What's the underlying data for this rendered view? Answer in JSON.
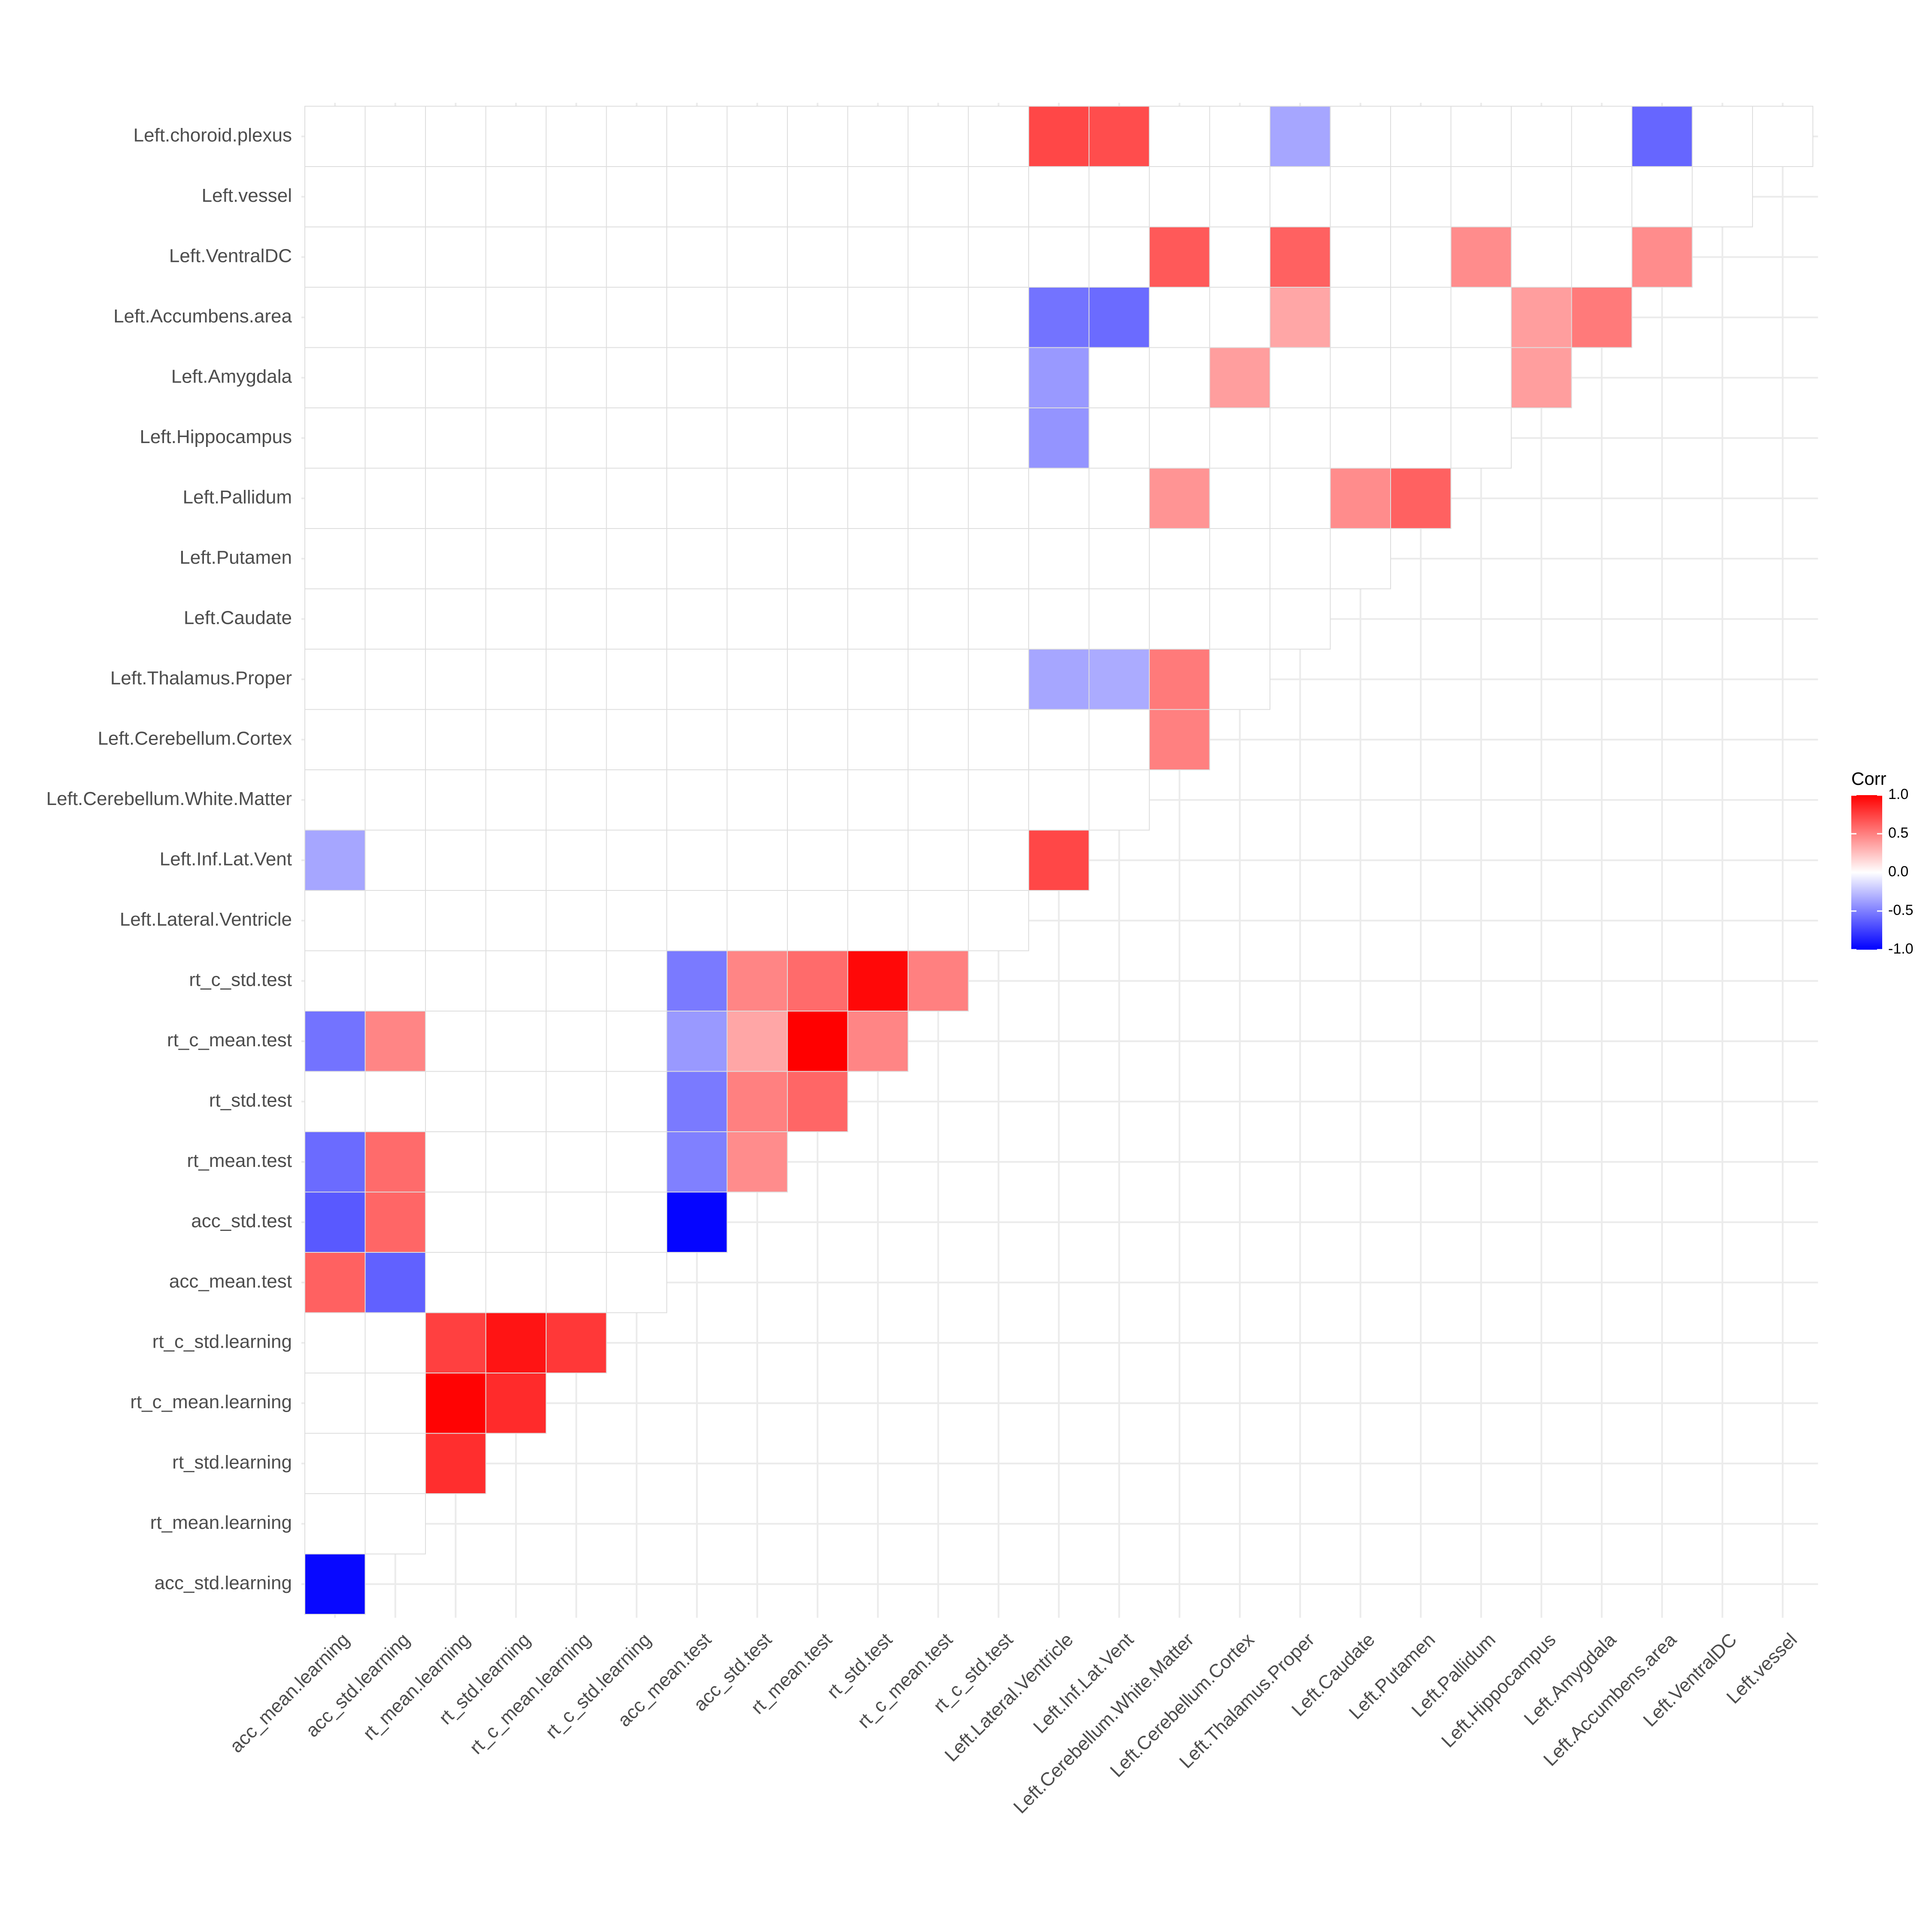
{
  "chart_data": {
    "type": "heatmap",
    "title": "",
    "xlabel": "",
    "ylabel": "",
    "variables": [
      "acc_mean.learning",
      "acc_std.learning",
      "rt_mean.learning",
      "rt_std.learning",
      "rt_c_mean.learning",
      "rt_c_std.learning",
      "acc_mean.test",
      "acc_std.test",
      "rt_mean.test",
      "rt_std.test",
      "rt_c_mean.test",
      "rt_c_std.test",
      "Left.Lateral.Ventricle",
      "Left.Inf.Lat.Vent",
      "Left.Cerebellum.White.Matter",
      "Left.Cerebellum.Cortex",
      "Left.Thalamus.Proper",
      "Left.Caudate",
      "Left.Putamen",
      "Left.Pallidum",
      "Left.Hippocampus",
      "Left.Amygdala",
      "Left.Accumbens.area",
      "Left.VentralDC",
      "Left.vessel",
      "Left.choroid.plexus"
    ],
    "x_labels": [
      "acc_mean.learning",
      "acc_std.learning",
      "rt_mean.learning",
      "rt_std.learning",
      "rt_c_mean.learning",
      "rt_c_std.learning",
      "acc_mean.test",
      "acc_std.test",
      "rt_mean.test",
      "rt_std.test",
      "rt_c_mean.test",
      "rt_c_std.test",
      "Left.Lateral.Ventricle",
      "Left.Inf.Lat.Vent",
      "Left.Cerebellum.White.Matter",
      "Left.Cerebellum.Cortex",
      "Left.Thalamus.Proper",
      "Left.Caudate",
      "Left.Putamen",
      "Left.Pallidum",
      "Left.Hippocampus",
      "Left.Amygdala",
      "Left.Accumbens.area",
      "Left.VentralDC",
      "Left.vessel"
    ],
    "y_labels": [
      "acc_std.learning",
      "rt_mean.learning",
      "rt_std.learning",
      "rt_c_mean.learning",
      "rt_c_std.learning",
      "acc_mean.test",
      "acc_std.test",
      "rt_mean.test",
      "rt_std.test",
      "rt_c_mean.test",
      "rt_c_std.test",
      "Left.Lateral.Ventricle",
      "Left.Inf.Lat.Vent",
      "Left.Cerebellum.White.Matter",
      "Left.Cerebellum.Cortex",
      "Left.Thalamus.Proper",
      "Left.Caudate",
      "Left.Putamen",
      "Left.Pallidum",
      "Left.Hippocampus",
      "Left.Amygdala",
      "Left.Accumbens.area",
      "Left.VentralDC",
      "Left.vessel",
      "Left.choroid.plexus"
    ],
    "layout": "lower-triangle",
    "nonsignificant_cells": "blank",
    "cells": [
      {
        "row": "acc_std.learning",
        "col": "acc_mean.learning",
        "value": -0.97
      },
      {
        "row": "rt_std.learning",
        "col": "rt_mean.learning",
        "value": 0.82
      },
      {
        "row": "rt_c_mean.learning",
        "col": "rt_mean.learning",
        "value": 0.99
      },
      {
        "row": "rt_c_mean.learning",
        "col": "rt_std.learning",
        "value": 0.83
      },
      {
        "row": "rt_c_std.learning",
        "col": "rt_mean.learning",
        "value": 0.75
      },
      {
        "row": "rt_c_std.learning",
        "col": "rt_std.learning",
        "value": 0.92
      },
      {
        "row": "rt_c_std.learning",
        "col": "rt_c_mean.learning",
        "value": 0.78
      },
      {
        "row": "acc_mean.test",
        "col": "acc_mean.learning",
        "value": 0.62
      },
      {
        "row": "acc_mean.test",
        "col": "acc_std.learning",
        "value": -0.62
      },
      {
        "row": "acc_std.test",
        "col": "acc_mean.learning",
        "value": -0.65
      },
      {
        "row": "acc_std.test",
        "col": "acc_std.learning",
        "value": 0.6
      },
      {
        "row": "acc_std.test",
        "col": "acc_mean.test",
        "value": -0.98
      },
      {
        "row": "rt_mean.test",
        "col": "acc_mean.learning",
        "value": -0.58
      },
      {
        "row": "rt_mean.test",
        "col": "acc_std.learning",
        "value": 0.58
      },
      {
        "row": "rt_mean.test",
        "col": "acc_mean.test",
        "value": -0.5
      },
      {
        "row": "rt_mean.test",
        "col": "acc_std.test",
        "value": 0.45
      },
      {
        "row": "rt_std.test",
        "col": "acc_mean.test",
        "value": -0.52
      },
      {
        "row": "rt_std.test",
        "col": "acc_std.test",
        "value": 0.5
      },
      {
        "row": "rt_std.test",
        "col": "rt_mean.test",
        "value": 0.6
      },
      {
        "row": "rt_c_mean.test",
        "col": "acc_mean.learning",
        "value": -0.55
      },
      {
        "row": "rt_c_mean.test",
        "col": "acc_std.learning",
        "value": 0.48
      },
      {
        "row": "rt_c_mean.test",
        "col": "acc_mean.test",
        "value": -0.4
      },
      {
        "row": "rt_c_mean.test",
        "col": "acc_std.test",
        "value": 0.35
      },
      {
        "row": "rt_c_mean.test",
        "col": "rt_mean.test",
        "value": 1.0
      },
      {
        "row": "rt_c_mean.test",
        "col": "rt_std.test",
        "value": 0.48
      },
      {
        "row": "rt_c_std.test",
        "col": "acc_mean.test",
        "value": -0.52
      },
      {
        "row": "rt_c_std.test",
        "col": "acc_std.test",
        "value": 0.48
      },
      {
        "row": "rt_c_std.test",
        "col": "rt_mean.test",
        "value": 0.58
      },
      {
        "row": "rt_c_std.test",
        "col": "rt_std.test",
        "value": 0.97
      },
      {
        "row": "rt_c_std.test",
        "col": "rt_c_mean.test",
        "value": 0.5
      },
      {
        "row": "Left.Inf.Lat.Vent",
        "col": "acc_mean.learning",
        "value": -0.35
      },
      {
        "row": "Left.Inf.Lat.Vent",
        "col": "Left.Lateral.Ventricle",
        "value": 0.72
      },
      {
        "row": "Left.Cerebellum.Cortex",
        "col": "Left.Cerebellum.White.Matter",
        "value": 0.5
      },
      {
        "row": "Left.Thalamus.Proper",
        "col": "Left.Lateral.Ventricle",
        "value": -0.35
      },
      {
        "row": "Left.Thalamus.Proper",
        "col": "Left.Inf.Lat.Vent",
        "value": -0.33
      },
      {
        "row": "Left.Thalamus.Proper",
        "col": "Left.Cerebellum.White.Matter",
        "value": 0.52
      },
      {
        "row": "Left.Pallidum",
        "col": "Left.Cerebellum.White.Matter",
        "value": 0.42
      },
      {
        "row": "Left.Pallidum",
        "col": "Left.Caudate",
        "value": 0.45
      },
      {
        "row": "Left.Pallidum",
        "col": "Left.Putamen",
        "value": 0.62
      },
      {
        "row": "Left.Hippocampus",
        "col": "Left.Lateral.Ventricle",
        "value": -0.42
      },
      {
        "row": "Left.Amygdala",
        "col": "Left.Lateral.Ventricle",
        "value": -0.4
      },
      {
        "row": "Left.Amygdala",
        "col": "Left.Cerebellum.Cortex",
        "value": 0.38
      },
      {
        "row": "Left.Amygdala",
        "col": "Left.Hippocampus",
        "value": 0.38
      },
      {
        "row": "Left.Accumbens.area",
        "col": "Left.Lateral.Ventricle",
        "value": -0.55
      },
      {
        "row": "Left.Accumbens.area",
        "col": "Left.Inf.Lat.Vent",
        "value": -0.58
      },
      {
        "row": "Left.Accumbens.area",
        "col": "Left.Thalamus.Proper",
        "value": 0.35
      },
      {
        "row": "Left.Accumbens.area",
        "col": "Left.Hippocampus",
        "value": 0.38
      },
      {
        "row": "Left.Accumbens.area",
        "col": "Left.Amygdala",
        "value": 0.52
      },
      {
        "row": "Left.VentralDC",
        "col": "Left.Cerebellum.White.Matter",
        "value": 0.65
      },
      {
        "row": "Left.VentralDC",
        "col": "Left.Thalamus.Proper",
        "value": 0.62
      },
      {
        "row": "Left.VentralDC",
        "col": "Left.Pallidum",
        "value": 0.45
      },
      {
        "row": "Left.VentralDC",
        "col": "Left.Accumbens.area",
        "value": 0.45
      },
      {
        "row": "Left.choroid.plexus",
        "col": "Left.Lateral.Ventricle",
        "value": 0.72
      },
      {
        "row": "Left.choroid.plexus",
        "col": "Left.Inf.Lat.Vent",
        "value": 0.7
      },
      {
        "row": "Left.choroid.plexus",
        "col": "Left.Thalamus.Proper",
        "value": -0.35
      },
      {
        "row": "Left.choroid.plexus",
        "col": "Left.Accumbens.area",
        "value": -0.6
      }
    ],
    "color_scale": {
      "low": "#0000FF",
      "mid": "#FFFFFF",
      "high": "#FF0000",
      "limits": [
        -1,
        1
      ]
    },
    "legend": {
      "title": "Corr",
      "ticks": [
        1.0,
        0.5,
        0.0,
        -0.5,
        -1.0
      ],
      "tick_labels": [
        "1.0",
        "0.5",
        "0.0",
        "-0.5",
        "-1.0"
      ],
      "placement": "right"
    },
    "grid": true,
    "cell_border_color": "#DEDEDE",
    "grid_color": "#EBEBEB"
  }
}
